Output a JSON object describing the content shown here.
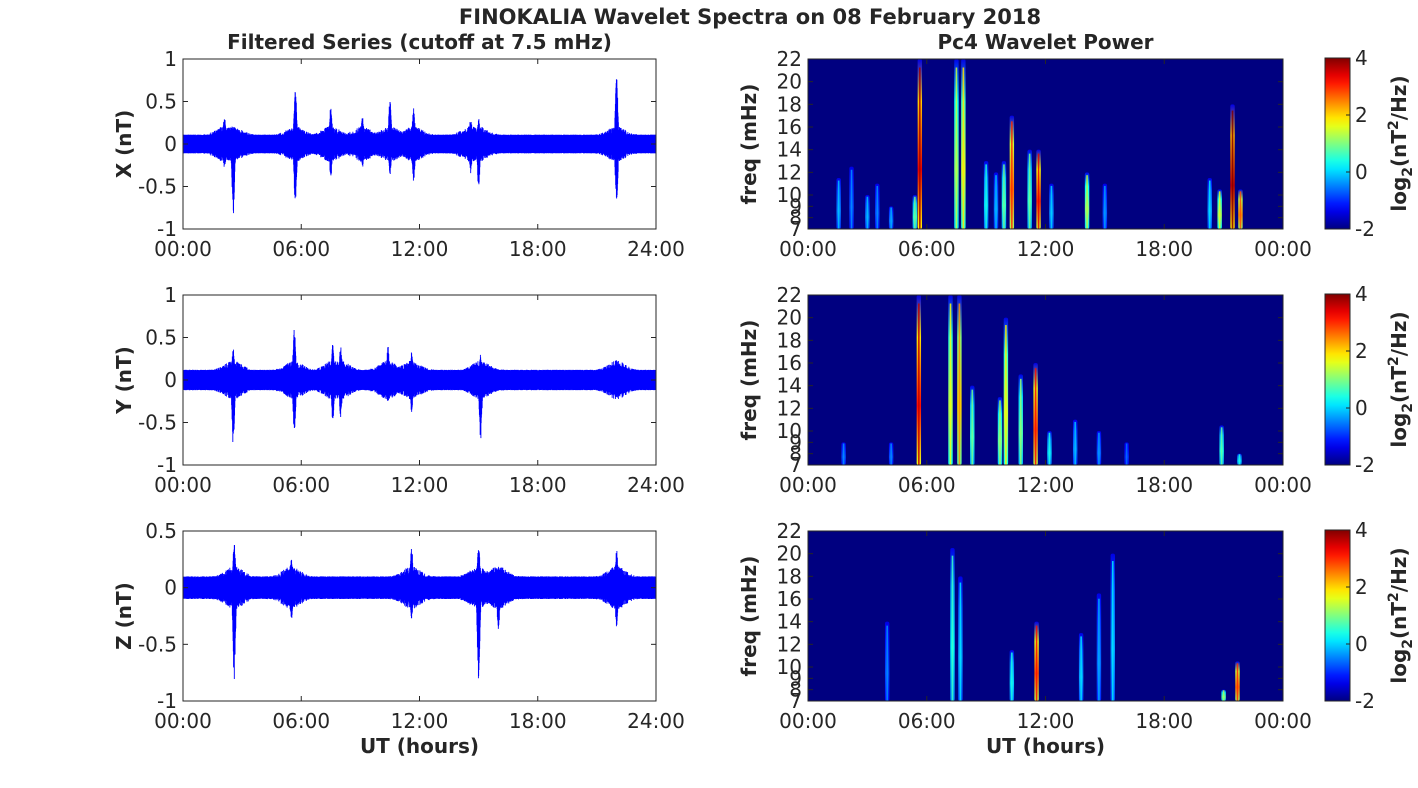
{
  "figure": {
    "title": "FINOKALIA Wavelet Spectra on 08 February 2018"
  },
  "chart_data": [
    {
      "type": "line",
      "panel": "X",
      "title": "Filtered Series (cutoff at 7.5 mHz)",
      "ylabel": "X (nT)",
      "xlabel": "",
      "xlim": [
        0,
        24
      ],
      "ylim": [
        -1,
        1
      ],
      "xticks": [
        0,
        6,
        12,
        18,
        24
      ],
      "xtick_labels": [
        "00:00",
        "06:00",
        "12:00",
        "18:00",
        "24:00"
      ],
      "yticks": [
        -1,
        -0.5,
        0,
        0.5,
        1
      ],
      "ytick_labels": [
        "-1",
        "-0.5",
        "0",
        "0.5",
        "1"
      ],
      "color": "#0000ff",
      "base_amplitude": 0.11,
      "spikes": [
        {
          "t": 2.1,
          "hi": 0.35,
          "lo": -0.3
        },
        {
          "t": 2.55,
          "hi": 0.2,
          "lo": -0.85
        },
        {
          "t": 5.7,
          "hi": 0.66,
          "lo": -0.72
        },
        {
          "t": 7.5,
          "hi": 0.45,
          "lo": -0.4
        },
        {
          "t": 9.1,
          "hi": 0.35,
          "lo": -0.3
        },
        {
          "t": 10.5,
          "hi": 0.53,
          "lo": -0.38
        },
        {
          "t": 11.7,
          "hi": 0.45,
          "lo": -0.45
        },
        {
          "t": 14.6,
          "hi": 0.32,
          "lo": -0.35
        },
        {
          "t": 15.0,
          "hi": 0.3,
          "lo": -0.52
        },
        {
          "t": 22.0,
          "hi": 0.79,
          "lo": -0.72
        }
      ]
    },
    {
      "type": "line",
      "panel": "Y",
      "title": "",
      "ylabel": "Y (nT)",
      "xlabel": "",
      "xlim": [
        0,
        24
      ],
      "ylim": [
        -1,
        1
      ],
      "xticks": [
        0,
        6,
        12,
        18,
        24
      ],
      "xtick_labels": [
        "00:00",
        "06:00",
        "12:00",
        "18:00",
        "24:00"
      ],
      "yticks": [
        -1,
        -0.5,
        0,
        0.5,
        1
      ],
      "ytick_labels": [
        "-1",
        "-0.5",
        "0",
        "0.5",
        "1"
      ],
      "color": "#0000ff",
      "base_amplitude": 0.12,
      "spikes": [
        {
          "t": 2.55,
          "hi": 0.38,
          "lo": -0.82
        },
        {
          "t": 5.65,
          "hi": 0.62,
          "lo": -0.65
        },
        {
          "t": 7.6,
          "hi": 0.43,
          "lo": -0.5
        },
        {
          "t": 8.0,
          "hi": 0.4,
          "lo": -0.45
        },
        {
          "t": 10.4,
          "hi": 0.4,
          "lo": -0.3
        },
        {
          "t": 11.6,
          "hi": 0.33,
          "lo": -0.4
        },
        {
          "t": 15.1,
          "hi": 0.3,
          "lo": -0.72
        },
        {
          "t": 22.0,
          "hi": 0.26,
          "lo": -0.2
        }
      ]
    },
    {
      "type": "line",
      "panel": "Z",
      "title": "",
      "ylabel": "Z (nT)",
      "xlabel": "UT (hours)",
      "xlim": [
        0,
        24
      ],
      "ylim": [
        -1,
        0.5
      ],
      "xticks": [
        0,
        6,
        12,
        18,
        24
      ],
      "xtick_labels": [
        "00:00",
        "06:00",
        "12:00",
        "18:00",
        "24:00"
      ],
      "yticks": [
        -1,
        -0.5,
        0,
        0.5
      ],
      "ytick_labels": [
        "-1",
        "-0.5",
        "0",
        "0.5"
      ],
      "color": "#0000ff",
      "base_amplitude": 0.1,
      "spikes": [
        {
          "t": 2.6,
          "hi": 0.4,
          "lo": -0.81
        },
        {
          "t": 5.5,
          "hi": 0.25,
          "lo": -0.3
        },
        {
          "t": 11.6,
          "hi": 0.38,
          "lo": -0.3
        },
        {
          "t": 15.0,
          "hi": 0.38,
          "lo": -0.87
        },
        {
          "t": 16.0,
          "hi": 0.2,
          "lo": -0.4
        },
        {
          "t": 22.0,
          "hi": 0.34,
          "lo": -0.35
        }
      ]
    },
    {
      "type": "heatmap",
      "panel": "X",
      "title": "Pc4 Wavelet Power",
      "ylabel": "freq (mHz)",
      "xlabel": "",
      "xlim": [
        0,
        24
      ],
      "ylim": [
        7,
        22
      ],
      "xticks": [
        0,
        6,
        12,
        18,
        24
      ],
      "xtick_labels": [
        "00:00",
        "06:00",
        "12:00",
        "18:00",
        "00:00"
      ],
      "yticks": [
        7,
        8,
        9,
        10,
        12,
        14,
        16,
        18,
        20,
        22
      ],
      "ytick_labels": [
        "7",
        "8",
        "9",
        "10",
        "12",
        "14",
        "16",
        "18",
        "20",
        "22"
      ],
      "colorbar_label": "log2(nT^2/Hz)",
      "colorbar_label_parts": [
        "log",
        "2",
        "(nT",
        "2",
        "/Hz)"
      ],
      "clim": [
        -2,
        4
      ],
      "colorbar_ticks": [
        -2,
        0,
        2,
        4
      ],
      "colormap": "jet",
      "background_value": -2,
      "streaks": [
        {
          "t": 1.55,
          "f_top": 11.5,
          "value": -0.5
        },
        {
          "t": 2.2,
          "f_top": 12.5,
          "value": -0.8
        },
        {
          "t": 3.0,
          "f_top": 10.0,
          "value": -0.5
        },
        {
          "t": 3.5,
          "f_top": 11.0,
          "value": -0.8
        },
        {
          "t": 4.2,
          "f_top": 9.0,
          "value": -0.6
        },
        {
          "t": 5.4,
          "f_top": 10.0,
          "value": 0.5
        },
        {
          "t": 5.65,
          "f_top": 22.0,
          "value": 3.4
        },
        {
          "t": 7.5,
          "f_top": 22.0,
          "value": 1.0
        },
        {
          "t": 7.85,
          "f_top": 22.0,
          "value": 1.5
        },
        {
          "t": 9.0,
          "f_top": 13.0,
          "value": 0.0
        },
        {
          "t": 9.5,
          "f_top": 12.0,
          "value": -0.5
        },
        {
          "t": 9.9,
          "f_top": 13.0,
          "value": 0.5
        },
        {
          "t": 10.3,
          "f_top": 17.0,
          "value": 2.6
        },
        {
          "t": 11.2,
          "f_top": 14.0,
          "value": 0.5
        },
        {
          "t": 11.65,
          "f_top": 14.0,
          "value": 3.0
        },
        {
          "t": 12.3,
          "f_top": 11.0,
          "value": -0.4
        },
        {
          "t": 14.1,
          "f_top": 12.0,
          "value": 1.0
        },
        {
          "t": 15.0,
          "f_top": 11.0,
          "value": -0.7
        },
        {
          "t": 20.3,
          "f_top": 11.5,
          "value": -0.3
        },
        {
          "t": 20.8,
          "f_top": 10.5,
          "value": 1.2
        },
        {
          "t": 21.45,
          "f_top": 18.0,
          "value": 3.6
        },
        {
          "t": 21.85,
          "f_top": 10.5,
          "value": 2.4
        }
      ]
    },
    {
      "type": "heatmap",
      "panel": "Y",
      "title": "",
      "ylabel": "freq (mHz)",
      "xlabel": "",
      "xlim": [
        0,
        24
      ],
      "ylim": [
        7,
        22
      ],
      "xticks": [
        0,
        6,
        12,
        18,
        24
      ],
      "xtick_labels": [
        "00:00",
        "06:00",
        "12:00",
        "18:00",
        "00:00"
      ],
      "yticks": [
        7,
        8,
        9,
        10,
        12,
        14,
        16,
        18,
        20,
        22
      ],
      "ytick_labels": [
        "7",
        "8",
        "9",
        "10",
        "12",
        "14",
        "16",
        "18",
        "20",
        "22"
      ],
      "colorbar_label": "log2(nT^2/Hz)",
      "colorbar_label_parts": [
        "log",
        "2",
        "(nT",
        "2",
        "/Hz)"
      ],
      "clim": [
        -2,
        4
      ],
      "colorbar_ticks": [
        -2,
        0,
        2,
        4
      ],
      "colormap": "jet",
      "background_value": -2,
      "streaks": [
        {
          "t": 1.8,
          "f_top": 9.0,
          "value": -0.8
        },
        {
          "t": 4.2,
          "f_top": 9.0,
          "value": -0.8
        },
        {
          "t": 5.6,
          "f_top": 22.0,
          "value": 3.2
        },
        {
          "t": 7.2,
          "f_top": 22.0,
          "value": 1.3
        },
        {
          "t": 7.65,
          "f_top": 22.0,
          "value": 2.0
        },
        {
          "t": 8.3,
          "f_top": 14.0,
          "value": 0.5
        },
        {
          "t": 9.7,
          "f_top": 13.0,
          "value": 0.8
        },
        {
          "t": 10.0,
          "f_top": 20.0,
          "value": 1.4
        },
        {
          "t": 10.75,
          "f_top": 15.0,
          "value": 0.7
        },
        {
          "t": 11.5,
          "f_top": 16.0,
          "value": 2.8
        },
        {
          "t": 12.2,
          "f_top": 10.0,
          "value": 0.0
        },
        {
          "t": 13.5,
          "f_top": 11.0,
          "value": -0.5
        },
        {
          "t": 14.7,
          "f_top": 10.0,
          "value": -0.7
        },
        {
          "t": 16.1,
          "f_top": 9.0,
          "value": -1.0
        },
        {
          "t": 20.9,
          "f_top": 10.5,
          "value": 0.4
        },
        {
          "t": 21.8,
          "f_top": 8.0,
          "value": 0.0
        }
      ]
    },
    {
      "type": "heatmap",
      "panel": "Z",
      "title": "",
      "ylabel": "freq (mHz)",
      "xlabel": "UT (hours)",
      "xlim": [
        0,
        24
      ],
      "ylim": [
        7,
        22
      ],
      "xticks": [
        0,
        6,
        12,
        18,
        24
      ],
      "xtick_labels": [
        "00:00",
        "06:00",
        "12:00",
        "18:00",
        "00:00"
      ],
      "yticks": [
        7,
        8,
        9,
        10,
        12,
        14,
        16,
        18,
        20,
        22
      ],
      "ytick_labels": [
        "7",
        "8",
        "9",
        "10",
        "12",
        "14",
        "16",
        "18",
        "20",
        "22"
      ],
      "colorbar_label": "log2(nT^2/Hz)",
      "colorbar_label_parts": [
        "log",
        "2",
        "(nT",
        "2",
        "/Hz)"
      ],
      "clim": [
        -2,
        4
      ],
      "colorbar_ticks": [
        -2,
        0,
        2,
        4
      ],
      "colormap": "jet",
      "background_value": -2,
      "streaks": [
        {
          "t": 4.0,
          "f_top": 14.0,
          "value": -0.8
        },
        {
          "t": 7.3,
          "f_top": 20.5,
          "value": 0.2
        },
        {
          "t": 7.7,
          "f_top": 18.0,
          "value": -0.3
        },
        {
          "t": 10.3,
          "f_top": 11.5,
          "value": 0.0
        },
        {
          "t": 11.55,
          "f_top": 14.0,
          "value": 2.8
        },
        {
          "t": 13.8,
          "f_top": 13.0,
          "value": -0.3
        },
        {
          "t": 14.7,
          "f_top": 16.5,
          "value": -0.6
        },
        {
          "t": 15.4,
          "f_top": 20.0,
          "value": -0.3
        },
        {
          "t": 21.0,
          "f_top": 8.0,
          "value": 0.8
        },
        {
          "t": 21.7,
          "f_top": 10.5,
          "value": 2.6
        }
      ]
    }
  ]
}
